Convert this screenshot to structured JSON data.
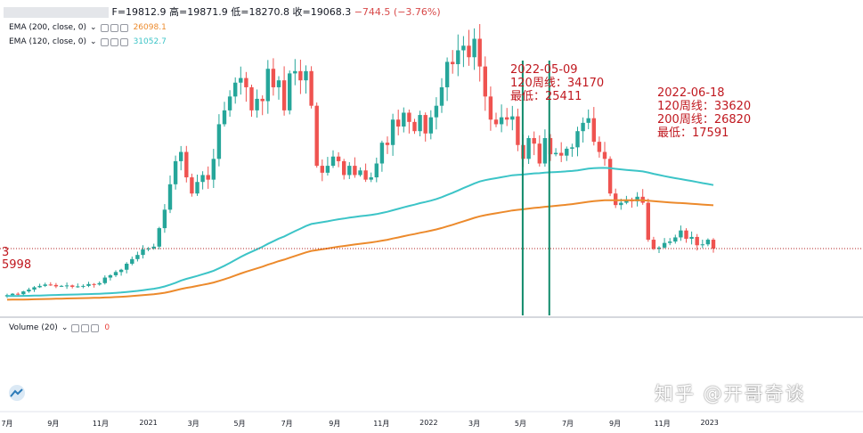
{
  "ohlc": {
    "open_value": "F=19812.9",
    "high_label": "高",
    "high_value": "=19871.9",
    "low_label": "低",
    "low_value": "=18270.8",
    "close_label": "收",
    "close_value": "=19068.3",
    "change": "−744.5 (−3.76%)"
  },
  "indicators": [
    {
      "label": "EMA (200, close, 0)",
      "value": "26098.1",
      "color": "#ec8a2c"
    },
    {
      "label": "EMA (120, close, 0)",
      "value": "31052.7",
      "color": "#3cc4c7"
    },
    {
      "label": "Volume (20)",
      "value": "0",
      "color": "#e8413a"
    }
  ],
  "annotations": [
    {
      "lines": [
        "2022-05-09",
        "120周线：34170",
        "最低：25411"
      ]
    },
    {
      "lines": [
        "2022-06-18",
        "120周线：33620",
        "200周线：26820",
        "最低：17591"
      ]
    }
  ],
  "edge_labels": [
    "3",
    "5998"
  ],
  "watermark": "知乎 @开哥奇谈",
  "colors": {
    "up": "#26a69a",
    "down": "#ef5350",
    "ema120": "#3cc4c7",
    "ema200": "#ec8a2c",
    "vline": "#0f8a6a",
    "hline": "#b22222"
  },
  "chart_data": {
    "type": "candlestick",
    "x_axis": {
      "ticks": [
        {
          "label": "7月",
          "t": 0
        },
        {
          "label": "9月",
          "t": 8.5
        },
        {
          "label": "11月",
          "t": 17.2
        },
        {
          "label": "2021",
          "t": 26
        },
        {
          "label": "3月",
          "t": 34.3
        },
        {
          "label": "5月",
          "t": 42.8
        },
        {
          "label": "7月",
          "t": 51.5
        },
        {
          "label": "9月",
          "t": 60.3
        },
        {
          "label": "11月",
          "t": 68.9
        },
        {
          "label": "2022",
          "t": 77.6
        },
        {
          "label": "3月",
          "t": 86
        },
        {
          "label": "5月",
          "t": 94.5
        },
        {
          "label": "7月",
          "t": 103.2
        },
        {
          "label": "9月",
          "t": 111.9
        },
        {
          "label": "11月",
          "t": 120.6
        },
        {
          "label": "2023",
          "t": 129.3
        }
      ]
    },
    "y_range": [
      5000,
      70000
    ],
    "reference_price": 19068.3,
    "vlines_t": [
      94.9,
      99.8
    ],
    "closes": [
      9000,
      9300,
      9200,
      9800,
      10200,
      10700,
      11000,
      11300,
      11200,
      10900,
      11000,
      11100,
      10800,
      10900,
      11000,
      11400,
      11300,
      11600,
      12800,
      13300,
      14000,
      14500,
      15800,
      16800,
      17700,
      18900,
      19100,
      19500,
      23500,
      27500,
      33000,
      38000,
      40000,
      34500,
      31000,
      33500,
      35000,
      34000,
      38500,
      46000,
      49000,
      52000,
      55000,
      56000,
      54000,
      49000,
      51500,
      51000,
      58000,
      54000,
      55500,
      49000,
      57000,
      57500,
      55500,
      57500,
      50000,
      37000,
      35500,
      37000,
      39000,
      38000,
      35000,
      37000,
      35000,
      36000,
      34000,
      34500,
      37500,
      42000,
      41500,
      47000,
      45500,
      48500,
      46500,
      44500,
      48000,
      44000,
      47500,
      50000,
      54000,
      59500,
      59000,
      62000,
      63000,
      60500,
      64500,
      58500,
      52000,
      47000,
      46000,
      47500,
      47000,
      47700,
      41500,
      38500,
      43000,
      41800,
      37500,
      43000,
      39500,
      39800,
      39200,
      40700,
      41000,
      44500,
      46300,
      47300,
      42200,
      40000,
      38500,
      31000,
      28500,
      29000,
      29700,
      29300,
      30300,
      29000,
      21000,
      19000,
      19300,
      20300,
      20600,
      21500,
      23000,
      21200,
      21600,
      19800,
      20000,
      21000,
      19068
    ]
  }
}
